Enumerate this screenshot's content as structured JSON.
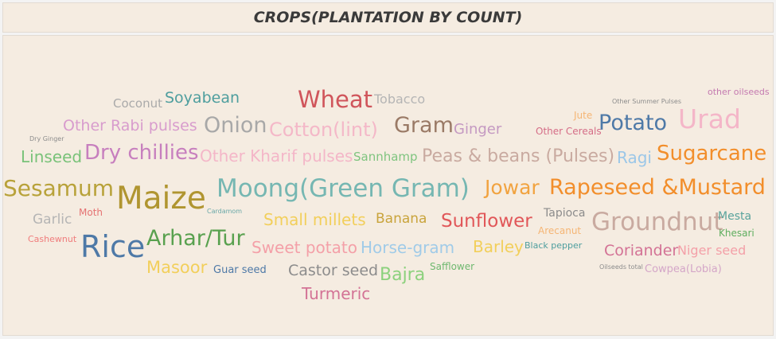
{
  "title": "CROPS(PLANTATION BY COUNT)",
  "chart_data": {
    "type": "wordcloud",
    "words": [
      {
        "text": "other oilseeds",
        "color": "#c47ab0",
        "size": 11
      },
      {
        "text": "Coconut",
        "color": "#aaaaaa",
        "size": 15
      },
      {
        "text": "Soyabean",
        "color": "#4e9e9e",
        "size": 19
      },
      {
        "text": "Wheat",
        "color": "#d0555b",
        "size": 29
      },
      {
        "text": "Tobacco",
        "color": "#b5b5b5",
        "size": 16
      },
      {
        "text": "Other Summer Pulses",
        "color": "#8c8c8c",
        "size": 8
      },
      {
        "text": "Jute",
        "color": "#f5b574",
        "size": 12
      },
      {
        "text": "Dry Ginger",
        "color": "#8c8c8c",
        "size": 8
      },
      {
        "text": "Other Rabi pulses",
        "color": "#d89ccd",
        "size": 19
      },
      {
        "text": "Onion",
        "color": "#a8a8a8",
        "size": 27
      },
      {
        "text": "Cotton(lint)",
        "color": "#f4b8c8",
        "size": 24
      },
      {
        "text": "Gram",
        "color": "#9a7a66",
        "size": 27
      },
      {
        "text": "Ginger",
        "color": "#c499c2",
        "size": 18
      },
      {
        "text": "Other Cereals",
        "color": "#d56d87",
        "size": 12
      },
      {
        "text": "Potato",
        "color": "#4e79a7",
        "size": 27
      },
      {
        "text": "Urad",
        "color": "#f4b6c8",
        "size": 33
      },
      {
        "text": "Linseed",
        "color": "#79c279",
        "size": 20
      },
      {
        "text": "Dry chillies",
        "color": "#c77fbe",
        "size": 26
      },
      {
        "text": "Other Kharif pulses",
        "color": "#f4b6c8",
        "size": 20
      },
      {
        "text": "Sannhamp",
        "color": "#7fc47f",
        "size": 15
      },
      {
        "text": "Peas & beans (Pulses)",
        "color": "#c9aaa0",
        "size": 22
      },
      {
        "text": "Ragi",
        "color": "#9bc7e8",
        "size": 20
      },
      {
        "text": "Sugarcane",
        "color": "#f28e2b",
        "size": 26
      },
      {
        "text": "Sesamum",
        "color": "#b8a23a",
        "size": 28
      },
      {
        "text": "Maize",
        "color": "#b09530",
        "size": 39
      },
      {
        "text": "Moong(Green Gram)",
        "color": "#76b7b2",
        "size": 31
      },
      {
        "text": "Jowar",
        "color": "#f1a340",
        "size": 25
      },
      {
        "text": "Rapeseed &Mustard",
        "color": "#f28e2b",
        "size": 27
      },
      {
        "text": "Garlic",
        "color": "#b5b5b5",
        "size": 17
      },
      {
        "text": "Moth",
        "color": "#e57373",
        "size": 12
      },
      {
        "text": "Cardamom",
        "color": "#6aa8a8",
        "size": 8
      },
      {
        "text": "Small millets",
        "color": "#f2cf5b",
        "size": 20
      },
      {
        "text": "Banana",
        "color": "#c9a43c",
        "size": 17
      },
      {
        "text": "Sunflower",
        "color": "#e15759",
        "size": 23
      },
      {
        "text": "Tapioca",
        "color": "#8c8c8c",
        "size": 14
      },
      {
        "text": "Groundnut",
        "color": "#c9aaa0",
        "size": 31
      },
      {
        "text": "Mesta",
        "color": "#59a39c",
        "size": 14
      },
      {
        "text": "Arecanut",
        "color": "#f5b574",
        "size": 12
      },
      {
        "text": "Khesari",
        "color": "#5fae5f",
        "size": 12
      },
      {
        "text": "Cashewnut",
        "color": "#f07c7c",
        "size": 11
      },
      {
        "text": "Rice",
        "color": "#4e79a7",
        "size": 38
      },
      {
        "text": "Arhar/Tur",
        "color": "#59a14f",
        "size": 27
      },
      {
        "text": "Sweet potato",
        "color": "#f4a0a8",
        "size": 20
      },
      {
        "text": "Horse-gram",
        "color": "#a0cbe8",
        "size": 20
      },
      {
        "text": "Barley",
        "color": "#f2cf5b",
        "size": 20
      },
      {
        "text": "Black pepper",
        "color": "#4e9e9e",
        "size": 11
      },
      {
        "text": "Coriander",
        "color": "#d37295",
        "size": 19
      },
      {
        "text": "Niger seed",
        "color": "#f4a0a8",
        "size": 16
      },
      {
        "text": "Masoor",
        "color": "#f2cf5b",
        "size": 21
      },
      {
        "text": "Guar seed",
        "color": "#4e79a7",
        "size": 13
      },
      {
        "text": "Castor seed",
        "color": "#8c8c8c",
        "size": 19
      },
      {
        "text": "Bajra",
        "color": "#8cd17d",
        "size": 22
      },
      {
        "text": "Safflower",
        "color": "#6fb86f",
        "size": 12
      },
      {
        "text": "Oilseeds total",
        "color": "#8c8c8c",
        "size": 8
      },
      {
        "text": "Cowpea(Lobia)",
        "color": "#d4a6c8",
        "size": 13
      },
      {
        "text": "Turmeric",
        "color": "#d37295",
        "size": 20
      }
    ]
  }
}
